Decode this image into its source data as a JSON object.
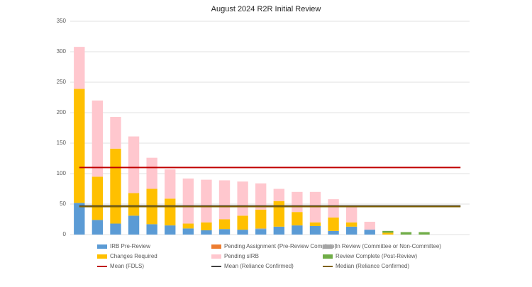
{
  "chart_data": {
    "type": "stacked-bar",
    "title": "August 2024 R2R Initial Review",
    "categories": [
      null,
      null,
      null,
      null,
      null,
      null,
      null,
      null,
      null,
      null,
      null,
      null,
      null,
      null,
      null,
      null,
      null,
      null,
      null,
      null,
      null,
      null
    ],
    "series": [
      {
        "name": "IRB Pre-Review",
        "color": "#5b9bd5",
        "values": [
          52,
          24,
          18,
          31,
          17,
          15,
          10,
          7,
          9,
          8,
          9,
          13,
          15,
          14,
          6,
          13,
          8,
          0,
          0,
          0,
          0,
          0
        ]
      },
      {
        "name": "Pending Assignment (Pre-Review Complete)",
        "color": "#ed7d31",
        "values": [
          0,
          0,
          0,
          0,
          0,
          0,
          0,
          0,
          0,
          0,
          0,
          0,
          0,
          0,
          0,
          0,
          0,
          0,
          0,
          0,
          0,
          0
        ]
      },
      {
        "name": "In Review (Committee or Non-Committee)",
        "color": "#a5a5a5",
        "values": [
          0,
          0,
          0,
          0,
          0,
          0,
          0,
          0,
          0,
          0,
          1,
          0,
          0,
          0,
          0,
          0,
          0,
          0,
          0,
          0,
          0,
          0
        ]
      },
      {
        "name": "Changes Required",
        "color": "#ffc000",
        "values": [
          187,
          71,
          123,
          37,
          58,
          44,
          8,
          13,
          16,
          23,
          31,
          42,
          22,
          6,
          22,
          7,
          0,
          3,
          0,
          0,
          0,
          0
        ]
      },
      {
        "name": "Pending sIRB",
        "color": "#ffc7ce",
        "values": [
          69,
          125,
          52,
          93,
          51,
          48,
          74,
          70,
          64,
          56,
          43,
          20,
          33,
          50,
          30,
          25,
          13,
          0,
          0,
          0,
          0,
          0
        ]
      },
      {
        "name": "Review Complete (Post-Review)",
        "color": "#70ad47",
        "values": [
          0,
          0,
          0,
          0,
          0,
          0,
          0,
          0,
          0,
          0,
          0,
          0,
          0,
          0,
          0,
          0,
          0,
          3,
          4,
          4,
          0,
          0
        ]
      }
    ],
    "lines": [
      {
        "name": "Mean (FDLS)",
        "color": "#c00000",
        "value": 110
      },
      {
        "name": "Mean (Reliance Confirmed)",
        "color": "#404040",
        "value": 47
      },
      {
        "name": "Median (Reliance Confirmed)",
        "color": "#7f6000",
        "value": 46
      }
    ],
    "ylim": [
      0,
      350
    ],
    "yticks": [
      0,
      50,
      100,
      150,
      200,
      250,
      300,
      350
    ],
    "grid": true
  }
}
